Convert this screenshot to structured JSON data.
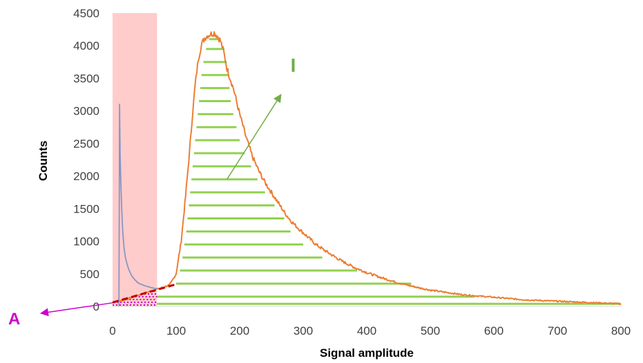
{
  "chart_data": {
    "type": "line",
    "title": "",
    "xlabel": "Signal amplitude",
    "ylabel": "Counts",
    "xlim": [
      0,
      800
    ],
    "ylim": [
      0,
      4500
    ],
    "x_ticks": [
      "0",
      "100",
      "200",
      "300",
      "400",
      "500",
      "600",
      "700",
      "800"
    ],
    "y_ticks": [
      "0",
      "500",
      "1000",
      "1500",
      "2000",
      "2500",
      "3000",
      "3500",
      "4000",
      "4500"
    ],
    "grid": false,
    "legend": "none",
    "shaded_region": {
      "x": [
        0,
        70
      ],
      "color": "#ffcccc"
    },
    "series": [
      {
        "color": "#ed7d31",
        "x": [
          0,
          20,
          40,
          60,
          70,
          80,
          90,
          100,
          108,
          115,
          120,
          125,
          130,
          135,
          140,
          145,
          150,
          155,
          160,
          165,
          170,
          175,
          180,
          190,
          200,
          210,
          220,
          230,
          240,
          250,
          260,
          270,
          280,
          290,
          300,
          320,
          340,
          360,
          380,
          400,
          420,
          450,
          480,
          500,
          550,
          600,
          650,
          700,
          750,
          800
        ],
        "y": [
          60,
          105,
          170,
          235,
          265,
          295,
          330,
          500,
          1000,
          1700,
          2250,
          2850,
          3400,
          3800,
          4020,
          4120,
          4160,
          4180,
          4200,
          4150,
          4070,
          3900,
          3650,
          3350,
          2950,
          2600,
          2300,
          2080,
          1900,
          1750,
          1600,
          1450,
          1320,
          1220,
          1130,
          950,
          820,
          700,
          600,
          520,
          450,
          360,
          290,
          250,
          180,
          140,
          100,
          80,
          60,
          40
        ]
      },
      {
        "color": "#8497c4",
        "x": [
          10,
          10.5,
          11,
          12,
          13,
          14,
          15,
          16,
          18,
          20,
          22,
          25,
          30,
          35,
          40,
          50,
          60,
          70
        ],
        "y": [
          0,
          1500,
          3100,
          2300,
          1900,
          1600,
          1350,
          1150,
          900,
          760,
          680,
          580,
          470,
          410,
          360,
          320,
          290,
          270
        ]
      }
    ],
    "baseline_fit": {
      "color": "#c00000",
      "x": [
        0,
        100
      ],
      "y": [
        60,
        340
      ]
    },
    "bands": {
      "color": "#92d050",
      "rows": [
        {
          "y": 40,
          "x": [
            70,
            800
          ]
        },
        {
          "y": 150,
          "x": [
            70,
            570
          ]
        },
        {
          "y": 350,
          "x": [
            100,
            470
          ]
        },
        {
          "y": 550,
          "x": [
            106,
            385
          ]
        },
        {
          "y": 750,
          "x": [
            110,
            330
          ]
        },
        {
          "y": 950,
          "x": [
            113,
            300
          ]
        },
        {
          "y": 1150,
          "x": [
            116,
            280
          ]
        },
        {
          "y": 1350,
          "x": [
            118,
            270
          ]
        },
        {
          "y": 1550,
          "x": [
            120,
            255
          ]
        },
        {
          "y": 1750,
          "x": [
            122,
            240
          ]
        },
        {
          "y": 1950,
          "x": [
            124,
            228
          ]
        },
        {
          "y": 2150,
          "x": [
            126,
            218
          ]
        },
        {
          "y": 2350,
          "x": [
            128,
            208
          ]
        },
        {
          "y": 2550,
          "x": [
            130,
            200
          ]
        },
        {
          "y": 2750,
          "x": [
            132,
            195
          ]
        },
        {
          "y": 2950,
          "x": [
            134,
            190
          ]
        },
        {
          "y": 3150,
          "x": [
            136,
            186
          ]
        },
        {
          "y": 3350,
          "x": [
            138,
            184
          ]
        },
        {
          "y": 3550,
          "x": [
            140,
            182
          ]
        },
        {
          "y": 3750,
          "x": [
            143,
            180
          ]
        },
        {
          "y": 3950,
          "x": [
            147,
            176
          ]
        },
        {
          "y": 4100,
          "x": [
            152,
            170
          ]
        }
      ]
    },
    "dotted_region": {
      "color": "#cc00cc",
      "x": [
        0,
        70
      ],
      "y_top": [
        60,
        265
      ]
    },
    "annotations": [
      {
        "text": "I",
        "color": "#70ad47",
        "at": [
          280,
          3600
        ],
        "arrow_from": [
          180,
          1950
        ],
        "arrow_to": [
          265,
          3250
        ]
      },
      {
        "text": "A",
        "color": "#cc00cc",
        "arrow_from": [
          0,
          55
        ],
        "arrow_to": [
          -115,
          0
        ]
      }
    ]
  }
}
